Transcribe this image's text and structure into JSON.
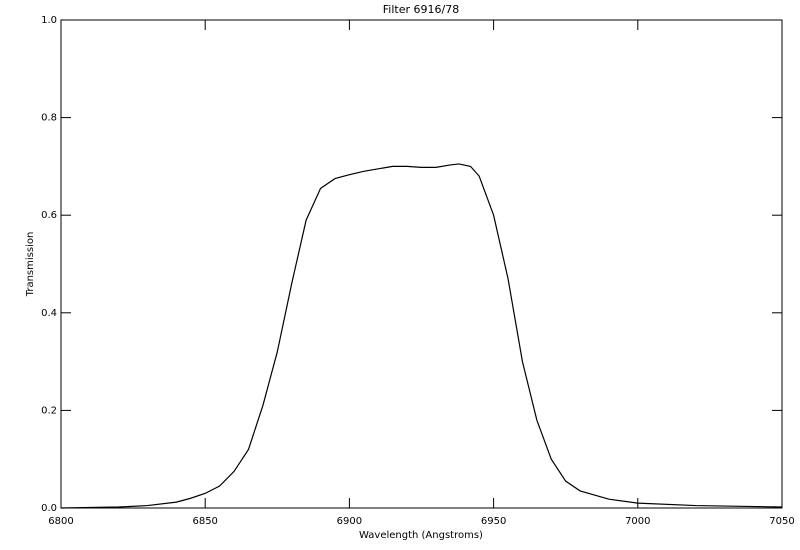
{
  "chart_data": {
    "type": "line",
    "title": "Filter 6916/78",
    "x_label": "Wavelength (Angstroms)",
    "y_label": "Transmission",
    "x": [
      6800,
      6820,
      6830,
      6840,
      6845,
      6850,
      6855,
      6860,
      6865,
      6870,
      6875,
      6880,
      6885,
      6890,
      6895,
      6900,
      6905,
      6910,
      6915,
      6920,
      6925,
      6930,
      6935,
      6938,
      6942,
      6945,
      6950,
      6955,
      6960,
      6965,
      6970,
      6975,
      6980,
      6990,
      7000,
      7020,
      7050
    ],
    "series": [
      {
        "name": "Transmission",
        "color": "#000000",
        "values": [
          0.0,
          0.002,
          0.005,
          0.012,
          0.02,
          0.03,
          0.045,
          0.075,
          0.12,
          0.21,
          0.32,
          0.46,
          0.59,
          0.655,
          0.675,
          0.683,
          0.69,
          0.695,
          0.7,
          0.7,
          0.698,
          0.698,
          0.703,
          0.705,
          0.7,
          0.68,
          0.6,
          0.47,
          0.3,
          0.18,
          0.1,
          0.055,
          0.035,
          0.018,
          0.01,
          0.005,
          0.002
        ]
      }
    ],
    "xlim": [
      6800,
      7050
    ],
    "xticks": [
      6800,
      6850,
      6900,
      6950,
      7000,
      7050
    ],
    "ylim": [
      0,
      1
    ],
    "yticks": [
      {
        "value": 0,
        "label": "0.0"
      },
      0.2,
      0.4,
      0.6,
      0.8,
      {
        "value": 1,
        "label": "1.0"
      }
    ],
    "grid": false
  }
}
